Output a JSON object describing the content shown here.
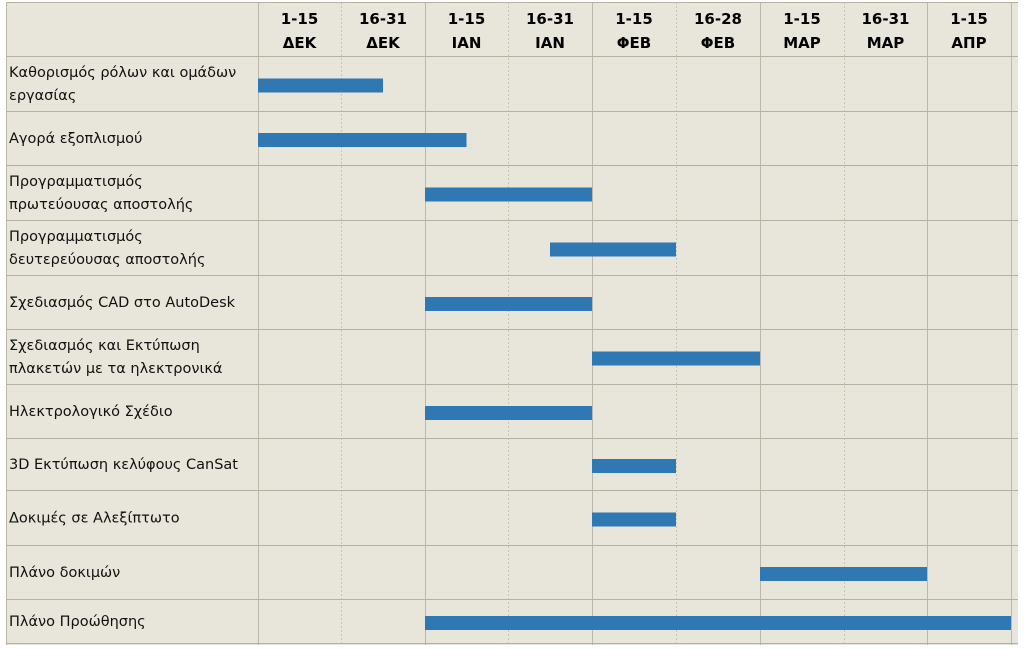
{
  "chart_data": {
    "type": "gantt",
    "title": "",
    "periods": [
      {
        "line1": "1-15",
        "line2": "ΔΕΚ"
      },
      {
        "line1": "16-31",
        "line2": "ΔΕΚ"
      },
      {
        "line1": "1-15",
        "line2": "ΙΑΝ"
      },
      {
        "line1": "16-31",
        "line2": "ΙΑΝ"
      },
      {
        "line1": "1-15",
        "line2": "ΦΕΒ"
      },
      {
        "line1": "16-28",
        "line2": "ΦΕΒ"
      },
      {
        "line1": "1-15",
        "line2": "ΜΑΡ"
      },
      {
        "line1": "16-31",
        "line2": "ΜΑΡ"
      },
      {
        "line1": "1-15",
        "line2": "ΑΠΡ"
      }
    ],
    "tasks": [
      {
        "label_lines": [
          "Καθορισμός ρόλων και ομάδων",
          "εργασίας"
        ],
        "start": 0,
        "end": 1.5
      },
      {
        "label_lines": [
          "Αγορά εξοπλισμού"
        ],
        "start": 0,
        "end": 2.5
      },
      {
        "label_lines": [
          "Προγραμματισμός",
          "πρωτεύουσας αποστολής"
        ],
        "start": 2,
        "end": 4
      },
      {
        "label_lines": [
          "Προγραμματισμός",
          "δευτερεύουσας αποστολής"
        ],
        "start": 3.5,
        "end": 5
      },
      {
        "label_lines": [
          "Σχεδιασμός CAD στο AutoDesk"
        ],
        "start": 2,
        "end": 4
      },
      {
        "label_lines": [
          "Σχεδιασμός και Εκτύπωση",
          "πλακετών με τα ηλεκτρονικά"
        ],
        "start": 4,
        "end": 6
      },
      {
        "label_lines": [
          "Ηλεκτρολογικό Σχέδιο"
        ],
        "start": 2,
        "end": 4
      },
      {
        "label_lines": [
          "3D Εκτύπωση κελύφους CanSat"
        ],
        "start": 4,
        "end": 5
      },
      {
        "label_lines": [
          "Δοκιμές σε Αλεξίπτωτο"
        ],
        "start": 4,
        "end": 5
      },
      {
        "label_lines": [
          "Πλάνο δοκιμών"
        ],
        "start": 6,
        "end": 8
      },
      {
        "label_lines": [
          "Πλάνο Προώθησης"
        ],
        "start": 2,
        "end": 9
      }
    ],
    "colors": {
      "bar": "#2f78b3",
      "background": "#e8e6da"
    }
  }
}
